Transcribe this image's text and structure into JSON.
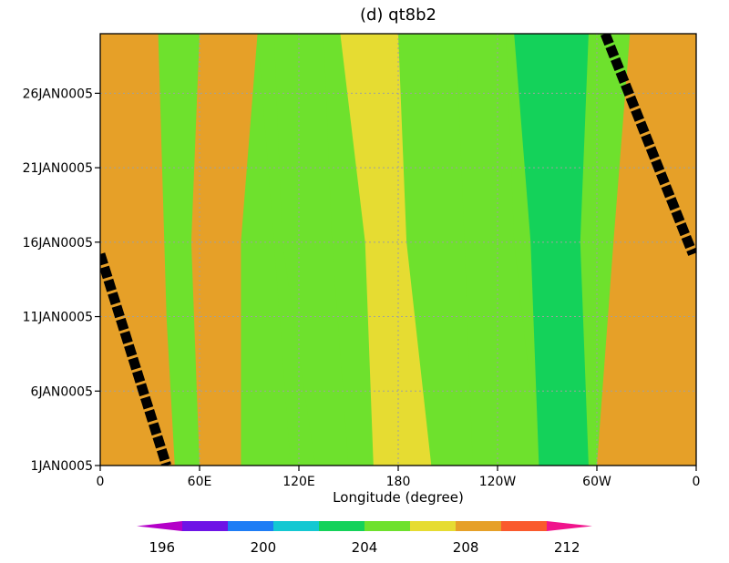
{
  "chart_data": {
    "type": "heatmap",
    "title": "(d) qt8b2",
    "xlabel": "Longitude (degree)",
    "ylabel": "",
    "x_ticks": [
      "0",
      "60E",
      "120E",
      "180",
      "120W",
      "60W",
      "0"
    ],
    "x_tick_values": [
      0,
      60,
      120,
      180,
      240,
      300,
      360
    ],
    "y_ticks": [
      "1JAN0005",
      "6JAN0005",
      "11JAN0005",
      "16JAN0005",
      "21JAN0005",
      "26JAN0005"
    ],
    "y_tick_values": [
      0,
      5,
      10,
      15,
      20,
      25
    ],
    "xlim": [
      0,
      360
    ],
    "ylim": [
      0,
      29
    ],
    "grid": true,
    "colorbar": {
      "position": "bottom",
      "labels": [
        "196",
        "200",
        "204",
        "208",
        "212"
      ],
      "label_values": [
        196,
        200,
        204,
        208,
        212
      ],
      "levels": [
        195,
        196,
        197,
        198,
        199,
        200,
        201,
        202,
        203,
        204,
        205,
        206,
        207,
        208,
        209,
        210,
        211,
        212,
        213
      ],
      "colors": [
        "#b400c8",
        "#6e14e6",
        "#1e7df5",
        "#14c8d2",
        "#14d25a",
        "#6ee12d",
        "#e6dc32",
        "#e6a028",
        "#fa5a2d",
        "#f0148c"
      ]
    },
    "bands": [
      {
        "name": "band-1",
        "level": 209,
        "lon_start": 10,
        "lon_end": 45
      },
      {
        "name": "band-2",
        "level": 206,
        "lon_start": 50,
        "lon_end": 70
      },
      {
        "name": "band-3",
        "level": 209,
        "lon_start": 55,
        "lon_end": 80
      },
      {
        "name": "band-4",
        "level": 205,
        "lon_start": 120,
        "lon_end": 95
      },
      {
        "name": "band-5",
        "level": 205,
        "lon_start": 135,
        "lon_end": 105
      },
      {
        "name": "band-6",
        "level": 207,
        "lon_start": 165,
        "lon_end": 145
      },
      {
        "name": "band-7",
        "level": 205,
        "lon_start": 240,
        "lon_end": 215
      },
      {
        "name": "band-8",
        "level": 203,
        "lon_start": 295,
        "lon_end": 250
      },
      {
        "name": "band-9",
        "level": 209,
        "lon_start": 345,
        "lon_end": 345
      }
    ],
    "black_lines": [
      {
        "name": "diagonal-line-left",
        "points": [
          [
            0,
            14.2
          ],
          [
            40,
            0
          ]
        ]
      },
      {
        "name": "diagonal-line-right",
        "points": [
          [
            305,
            29
          ],
          [
            358,
            14.2
          ]
        ]
      }
    ]
  }
}
